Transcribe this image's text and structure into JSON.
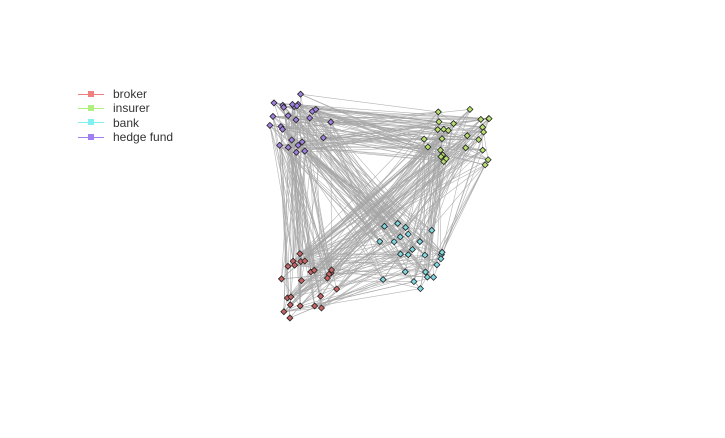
{
  "legend": {
    "items": [
      {
        "label": "broker",
        "color": "#f08080",
        "icon": "square-marker-line"
      },
      {
        "label": "insurer",
        "color": "#b0f080",
        "icon": "square-marker-line"
      },
      {
        "label": "bank",
        "color": "#80f0f0",
        "icon": "square-marker-line"
      },
      {
        "label": "hedge fund",
        "color": "#a080f0",
        "icon": "square-marker-line"
      }
    ]
  },
  "network": {
    "edge_color": "#a6a6a6",
    "node_stroke": "#222222",
    "groups": [
      {
        "name": "broker",
        "fill": "#c86464"
      },
      {
        "name": "insurer",
        "fill": "#b8e070"
      },
      {
        "name": "bank",
        "fill": "#80d8e0"
      },
      {
        "name": "hedge fund",
        "fill": "#a080e0"
      }
    ]
  }
}
